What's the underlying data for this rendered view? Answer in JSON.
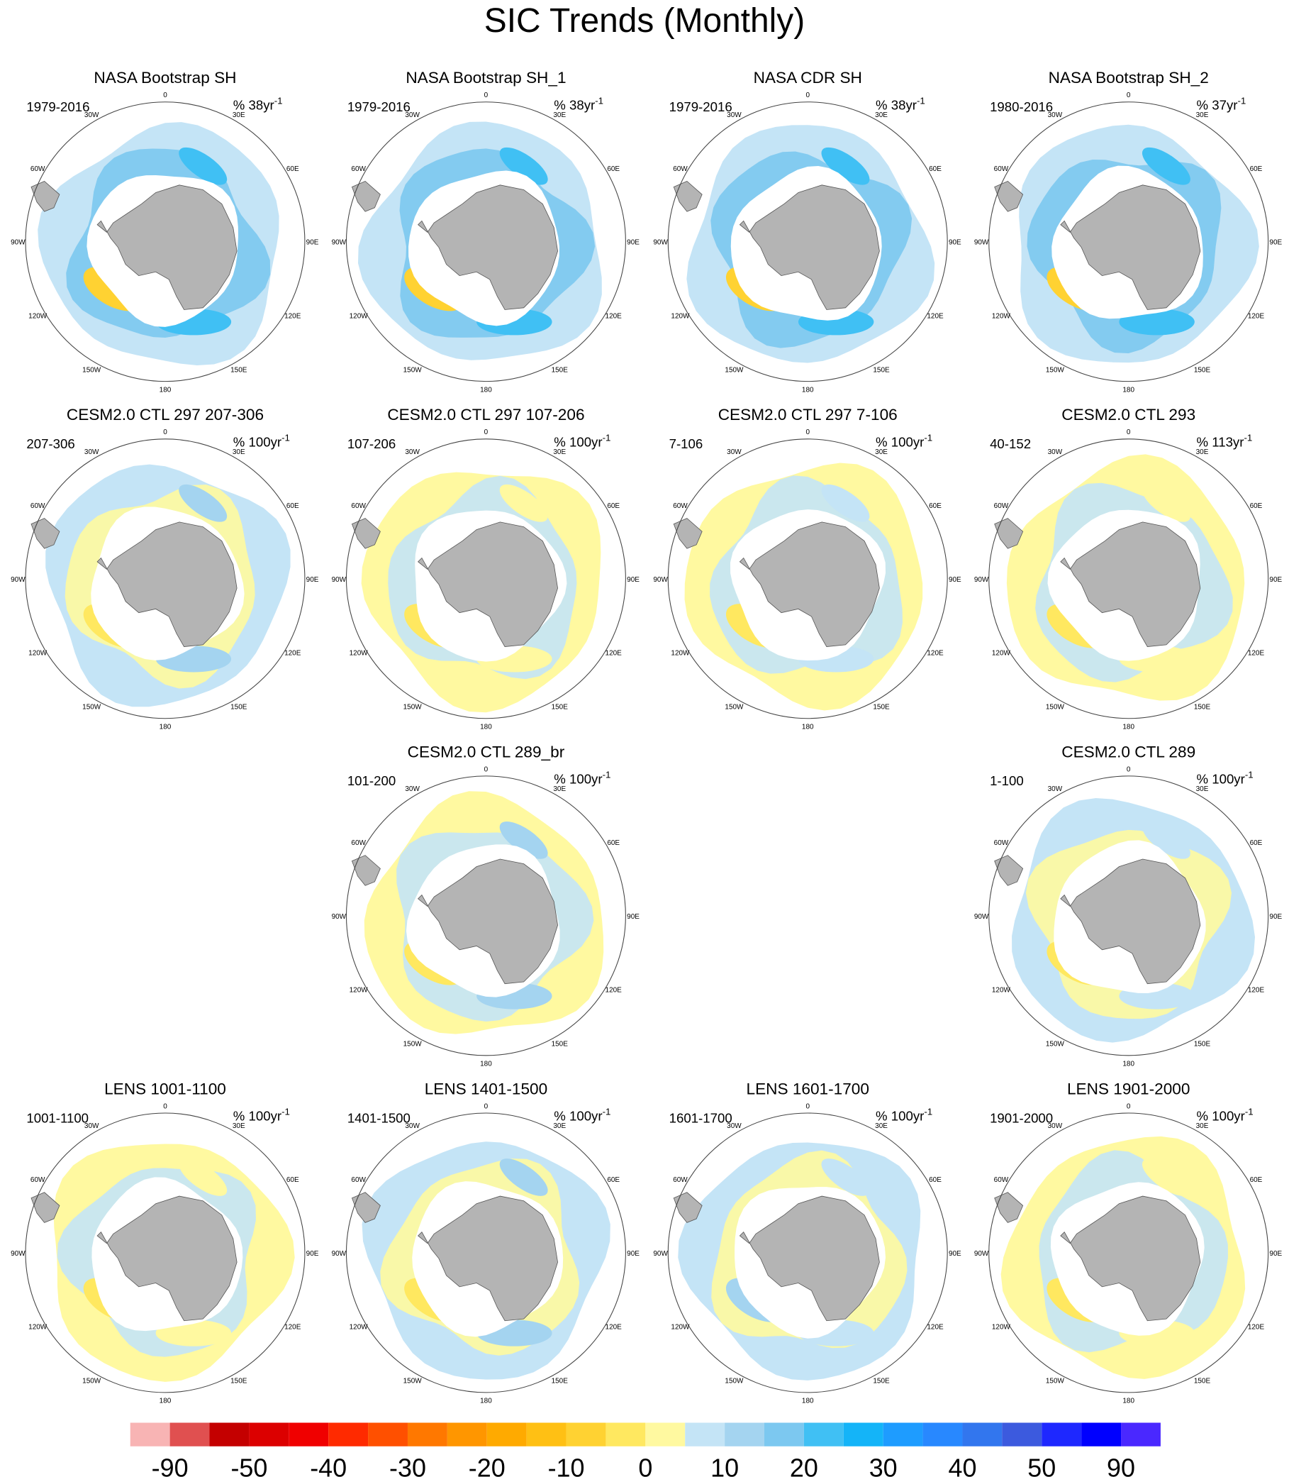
{
  "title": "SIC Trends (Monthly)",
  "lon_labels": [
    "0",
    "30E",
    "60E",
    "90E",
    "120E",
    "150E",
    "180",
    "150W",
    "120W",
    "90W",
    "60W",
    "30W"
  ],
  "panels": [
    {
      "title": "NASA Bootstrap SH",
      "left": "1979-2016",
      "right": "% 38yr",
      "right_sup": "-1"
    },
    {
      "title": "NASA Bootstrap SH_1",
      "left": "1979-2016",
      "right": "% 38yr",
      "right_sup": "-1"
    },
    {
      "title": "NASA CDR SH",
      "left": "1979-2016",
      "right": "% 38yr",
      "right_sup": "-1"
    },
    {
      "title": "NASA Bootstrap SH_2",
      "left": "1980-2016",
      "right": "% 37yr",
      "right_sup": "-1"
    },
    {
      "title": "CESM2.0 CTL 297 207-306",
      "left": "207-306",
      "right": "% 100yr",
      "right_sup": "-1"
    },
    {
      "title": "CESM2.0 CTL 297 107-206",
      "left": "107-206",
      "right": "% 100yr",
      "right_sup": "-1"
    },
    {
      "title": "CESM2.0 CTL 297 7-106",
      "left": "7-106",
      "right": "% 100yr",
      "right_sup": "-1"
    },
    {
      "title": "CESM2.0 CTL 293",
      "left": "40-152",
      "right": "% 113yr",
      "right_sup": "-1"
    },
    {
      "title": "CESM2.0 CTL 289_br",
      "left": "101-200",
      "right": "% 100yr",
      "right_sup": "-1"
    },
    {
      "title": "CESM2.0 CTL 289",
      "left": "1-100",
      "right": "% 100yr",
      "right_sup": "-1"
    },
    {
      "title": "LENS 1001-1100",
      "left": "1001-1100",
      "right": "% 100yr",
      "right_sup": "-1"
    },
    {
      "title": "LENS 1401-1500",
      "left": "1401-1500",
      "right": "% 100yr",
      "right_sup": "-1"
    },
    {
      "title": "LENS 1601-1700",
      "left": "1601-1700",
      "right": "% 100yr",
      "right_sup": "-1"
    },
    {
      "title": "LENS 1901-2000",
      "left": "1901-2000",
      "right": "% 100yr",
      "right_sup": "-1"
    }
  ],
  "colorbar": {
    "colors": [
      "#f8b4b4",
      "#e05050",
      "#c40000",
      "#dc0000",
      "#f00000",
      "#ff2a00",
      "#ff5000",
      "#ff7800",
      "#ff9600",
      "#ffaa00",
      "#ffc014",
      "#ffd232",
      "#ffe860",
      "#fff9a0",
      "#c4e4f6",
      "#a4d4f0",
      "#7cc8f0",
      "#40c0f4",
      "#14b4f8",
      "#1e9cff",
      "#2888ff",
      "#3276ee",
      "#3c5ade",
      "#1e28ff",
      "#0000ff",
      "#4a28ff"
    ],
    "ticks": [
      -90,
      -50,
      -40,
      -30,
      -20,
      -10,
      0,
      10,
      20,
      30,
      40,
      50,
      90
    ]
  }
}
